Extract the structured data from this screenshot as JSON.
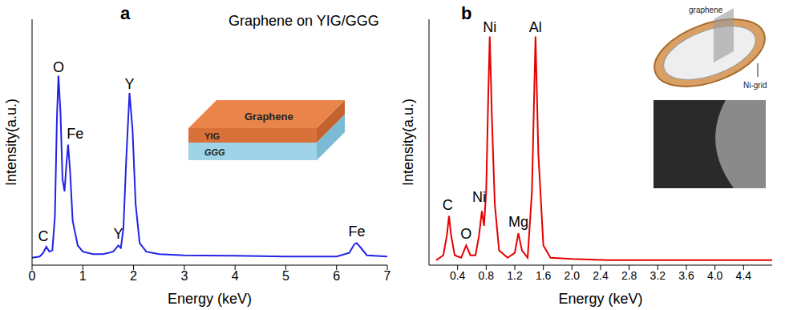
{
  "chart_data": [
    {
      "type": "line",
      "panel_label": "a",
      "title": "Graphene on YIG/GGG",
      "x_label": "Energy (keV)",
      "y_label": "Intensity(a.u.)",
      "x": [
        0,
        0.15,
        0.22,
        0.28,
        0.34,
        0.4,
        0.45,
        0.49,
        0.52,
        0.56,
        0.6,
        0.64,
        0.68,
        0.71,
        0.75,
        0.8,
        0.9,
        1.0,
        1.2,
        1.4,
        1.6,
        1.7,
        1.75,
        1.8,
        1.86,
        1.92,
        1.98,
        2.04,
        2.12,
        2.25,
        2.5,
        3.0,
        4.0,
        5.0,
        6.0,
        6.25,
        6.35,
        6.4,
        6.48,
        6.6,
        7.0
      ],
      "values": [
        3,
        3.5,
        5,
        7.5,
        5.5,
        6,
        20,
        60,
        77,
        62,
        35,
        30,
        42,
        49,
        38,
        18,
        8,
        5.5,
        4.5,
        4.5,
        5.5,
        8,
        7,
        15,
        45,
        70,
        55,
        25,
        9,
        5.5,
        4.5,
        4,
        3.8,
        3.5,
        3.5,
        5,
        8.5,
        9,
        7,
        4,
        3.5
      ],
      "color": "#2323e6",
      "xlim": [
        0,
        7
      ],
      "ylim": [
        0,
        100
      ],
      "xticks": [
        0,
        1,
        2,
        3,
        4,
        5,
        6,
        7
      ],
      "tick_labels": "x",
      "annotations": [
        {
          "text": "C",
          "x": 0.22,
          "y": 8
        },
        {
          "text": "O",
          "x": 0.52,
          "y": 77
        },
        {
          "text": "Fe",
          "x": 0.85,
          "y": 50
        },
        {
          "text": "Y",
          "x": 1.7,
          "y": 9
        },
        {
          "text": "Y",
          "x": 1.92,
          "y": 70
        },
        {
          "text": "Fe",
          "x": 6.4,
          "y": 10
        }
      ],
      "inset_labels": [
        "Graphene",
        "YIG",
        "GGG"
      ]
    },
    {
      "type": "line",
      "panel_label": "b",
      "x_label": "Energy (keV)",
      "y_label": "Intensity(a.u.)",
      "x": [
        0.1,
        0.2,
        0.25,
        0.28,
        0.31,
        0.36,
        0.45,
        0.52,
        0.58,
        0.65,
        0.7,
        0.74,
        0.77,
        0.8,
        0.83,
        0.85,
        0.88,
        0.92,
        0.98,
        1.1,
        1.2,
        1.25,
        1.3,
        1.38,
        1.44,
        1.49,
        1.53,
        1.6,
        1.7,
        2.0,
        2.5,
        3.0,
        3.5,
        4.0,
        4.5,
        4.8
      ],
      "values": [
        2,
        4,
        12,
        20,
        12,
        4,
        3,
        8,
        4,
        4,
        12,
        22,
        16,
        30,
        70,
        93,
        60,
        25,
        6,
        3,
        5,
        13,
        6,
        3,
        30,
        93,
        45,
        8,
        3,
        2.5,
        2,
        2,
        2,
        2,
        2,
        2
      ],
      "color": "#e60000",
      "xlim": [
        0,
        4.8
      ],
      "ylim": [
        0,
        100
      ],
      "xticks": [
        0.4,
        0.8,
        1.2,
        1.6,
        {
          "value": 2,
          "label": "2.0"
        },
        2.4,
        2.8,
        3.2,
        3.6,
        {
          "value": 4,
          "label": "4.0"
        },
        4.4
      ],
      "tick_labels": "x",
      "annotations": [
        {
          "text": "C",
          "x": 0.26,
          "y": 21
        },
        {
          "text": "O",
          "x": 0.52,
          "y": 9
        },
        {
          "text": "Ni",
          "x": 0.7,
          "y": 24
        },
        {
          "text": "Ni",
          "x": 0.85,
          "y": 93
        },
        {
          "text": "Mg",
          "x": 1.25,
          "y": 14
        },
        {
          "text": "Al",
          "x": 1.49,
          "y": 93
        }
      ],
      "inset_labels": [
        "graphene",
        "Ni-grid"
      ]
    }
  ]
}
